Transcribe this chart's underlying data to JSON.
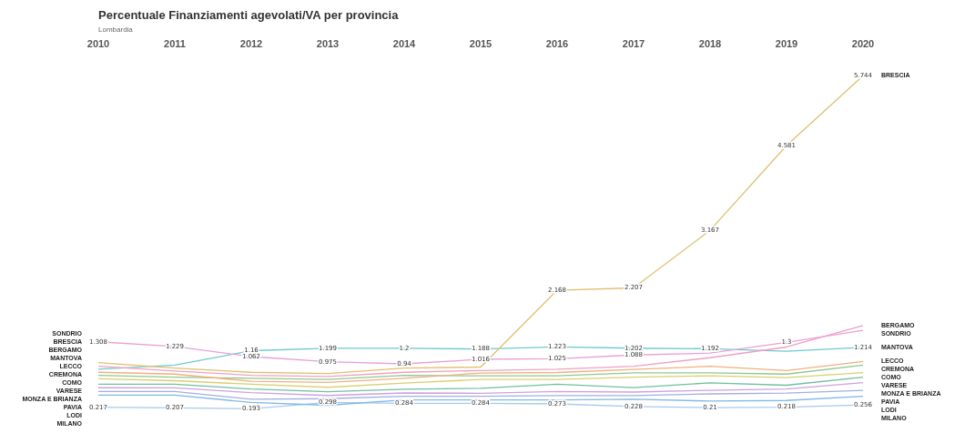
{
  "chart_data": {
    "type": "line",
    "title": "Percentuale Finanziamenti agevolati/VA per provincia",
    "subtitle": "Lombardia",
    "categories": [
      "2010",
      "2011",
      "2012",
      "2013",
      "2014",
      "2015",
      "2016",
      "2017",
      "2018",
      "2019",
      "2020"
    ],
    "grid": false,
    "legend": false,
    "marker": "none",
    "tick_labels": "x",
    "series": [
      {
        "name": "SONDRIO",
        "color": "#e8a0d8",
        "values": [
          1.308,
          1.229,
          1.062,
          0.975,
          0.94,
          1.016,
          1.025,
          1.088,
          1.12,
          1.3,
          1.5
        ],
        "value_labels": [
          "1.308",
          "1.229",
          "1.062",
          "0.975",
          "0.94",
          "1.016",
          "1.025",
          "1.088",
          null,
          "1.3",
          null
        ]
      },
      {
        "name": "BRESCIA",
        "color": "#e0c070",
        "values": [
          0.96,
          0.87,
          0.8,
          0.78,
          0.869,
          0.887,
          2.168,
          2.207,
          3.167,
          4.581,
          5.744
        ],
        "value_labels": [
          null,
          null,
          null,
          null,
          null,
          null,
          "2.168",
          "2.207",
          "3.167",
          "4.581",
          "5.744"
        ]
      },
      {
        "name": "BERGAMO",
        "color": "#f0a0c0",
        "values": [
          0.9,
          0.82,
          0.75,
          0.73,
          0.8,
          0.83,
          0.85,
          0.9,
          1.043,
          1.221,
          1.58
        ]
      },
      {
        "name": "MANTOVA",
        "color": "#70c8d0",
        "values": [
          0.85,
          0.919,
          1.16,
          1.199,
          1.2,
          1.188,
          1.223,
          1.202,
          1.192,
          1.15,
          1.214
        ],
        "value_labels": [
          null,
          null,
          "1.16",
          "1.199",
          "1.2",
          "1.188",
          "1.223",
          "1.202",
          "1.192",
          null,
          "1.214"
        ]
      },
      {
        "name": "LECCO",
        "color": "#f0b080",
        "values": [
          0.8,
          0.77,
          0.65,
          0.63,
          0.7,
          0.788,
          0.796,
          0.848,
          0.9,
          0.83,
          0.98
        ]
      },
      {
        "name": "CREMONA",
        "color": "#90c890",
        "values": [
          0.75,
          0.72,
          0.7,
          0.68,
          0.75,
          0.74,
          0.74,
          0.79,
          0.79,
          0.77,
          0.921
        ]
      },
      {
        "name": "COMO",
        "color": "#d8d070",
        "values": [
          0.691,
          0.66,
          0.6,
          0.55,
          0.62,
          0.68,
          0.68,
          0.72,
          0.74,
          0.71,
          0.794
        ]
      },
      {
        "name": "VARESE",
        "color": "#70c0a0",
        "values": [
          0.6,
          0.6,
          0.52,
          0.477,
          0.517,
          0.534,
          0.6,
          0.545,
          0.624,
          0.584,
          0.72
        ]
      },
      {
        "name": "MONZA E BRIANZA",
        "color": "#d0a0e0",
        "values": [
          0.542,
          0.54,
          0.46,
          0.413,
          0.455,
          0.45,
          0.48,
          0.47,
          0.5,
          0.52,
          0.627
        ]
      },
      {
        "name": "PAVIA",
        "color": "#a0b0e0",
        "values": [
          0.48,
          0.48,
          0.35,
          0.36,
          0.4,
          0.4,
          0.41,
          0.41,
          0.44,
          0.452,
          0.5
        ]
      },
      {
        "name": "LODI",
        "color": "#80b8e8",
        "values": [
          0.42,
          0.42,
          0.297,
          0.25,
          0.34,
          0.34,
          0.34,
          0.35,
          0.32,
          0.33,
          0.4
        ]
      },
      {
        "name": "MILANO",
        "color": "#a8c8f0",
        "values": [
          0.217,
          0.207,
          0.193,
          0.298,
          0.284,
          0.284,
          0.273,
          0.228,
          0.21,
          0.218,
          0.256
        ],
        "value_labels": [
          "0.217",
          "0.207",
          "0.193",
          "0.298",
          "0.284",
          "0.284",
          "0.273",
          "0.228",
          "0.21",
          "0.218",
          "0.256"
        ]
      }
    ]
  }
}
